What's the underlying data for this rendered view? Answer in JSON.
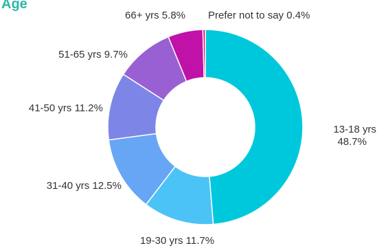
{
  "chart_data": {
    "type": "pie",
    "title": "Age",
    "donut": true,
    "start": "12 o'clock, clockwise",
    "slices": [
      {
        "label": "13-18 yrs",
        "value": 48.7,
        "value_label": "48.7%",
        "color": "#00c8dc"
      },
      {
        "label": "19-30 yrs",
        "value": 11.7,
        "value_label": "11.7%",
        "color": "#4cc3f7"
      },
      {
        "label": "31-40 yrs",
        "value": 12.5,
        "value_label": "12.5%",
        "color": "#67a6f5"
      },
      {
        "label": "41-50 yrs",
        "value": 11.2,
        "value_label": "11.2%",
        "color": "#7d86e6"
      },
      {
        "label": "51-65 yrs",
        "value": 9.7,
        "value_label": "9.7%",
        "color": "#9960d4"
      },
      {
        "label": "66+ yrs",
        "value": 5.8,
        "value_label": "5.8%",
        "color": "#c011a9"
      },
      {
        "label": "Prefer not to say",
        "value": 0.4,
        "value_label": "0.4%",
        "color": "#e0145a"
      }
    ]
  }
}
